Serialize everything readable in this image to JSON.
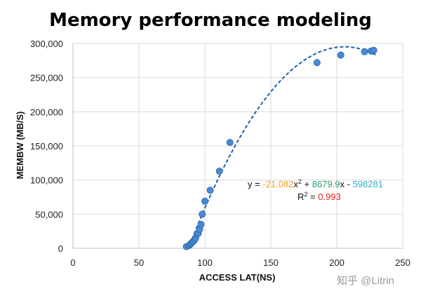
{
  "chart_data": {
    "type": "scatter",
    "title": "Memory performance modeling",
    "xlabel": "ACCESS LAT(NS)",
    "ylabel": "MEMBW (MB/S)",
    "xlim": [
      0,
      250
    ],
    "ylim": [
      0,
      300000
    ],
    "x_ticks": [
      0,
      50,
      100,
      150,
      200,
      250
    ],
    "y_ticks": [
      0,
      50000,
      100000,
      150000,
      200000,
      250000,
      300000
    ],
    "x_tick_labels": [
      "0",
      "50",
      "100",
      "150",
      "200",
      "250"
    ],
    "y_tick_labels": [
      "0",
      "50,000",
      "100,000",
      "150,000",
      "200,000",
      "250,000",
      "300,000"
    ],
    "grid": true,
    "series": [
      {
        "name": "MEMBW",
        "color": "#4a8ad4",
        "x": [
          86,
          88,
          89,
          90,
          91,
          92,
          93,
          94,
          95,
          96,
          97,
          98,
          100,
          104,
          111,
          119,
          185,
          203,
          221,
          226,
          228
        ],
        "y": [
          2500,
          4000,
          6000,
          8000,
          10000,
          12000,
          15000,
          21000,
          22000,
          28000,
          35000,
          50000,
          69000,
          85000,
          113000,
          155000,
          272000,
          283000,
          288000,
          289000,
          290000
        ]
      }
    ],
    "trendline": {
      "type": "polynomial",
      "order": 2,
      "color": "#1f5fa8",
      "style": "dashed",
      "coefficients": [
        -21.082,
        8679.9,
        -598281
      ],
      "x_range": [
        86,
        230
      ]
    },
    "equation": {
      "prefix": "y = ",
      "a": "-21.082",
      "x2": "x",
      "sup": "2",
      "plus": " + ",
      "b": "8679.9",
      "bx": "x",
      "sep": " - ",
      "c": "598281",
      "r2_prefix": "R",
      "r2_sup": "2",
      "r2_eq": " = ",
      "r2_value": "0.993",
      "colors": {
        "a": "#f0a020",
        "b": "#2aa060",
        "c": "#3ab0c8",
        "r2": "#e02020"
      }
    }
  },
  "watermark": "知乎 @Litrin"
}
